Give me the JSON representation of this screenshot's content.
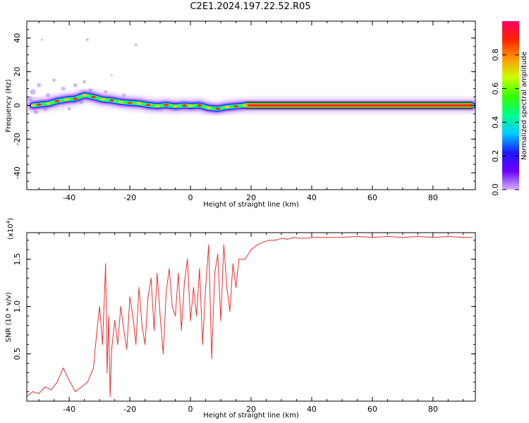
{
  "title": "C2E1.2024.197.22.52.R05",
  "colors": {
    "signal": "#e8302f",
    "frame": "#000000"
  },
  "chart_data": [
    {
      "type": "heatmap",
      "xlabel": "Height of straight line (km)",
      "ylabel": "Frequency (Hz)",
      "xlim": [
        -54,
        94
      ],
      "ylim": [
        -50,
        50
      ],
      "xticks": [
        "-40",
        "-20",
        "0",
        "20",
        "40",
        "60",
        "80"
      ],
      "xtick_values": [
        -40,
        -20,
        0,
        20,
        40,
        60,
        80
      ],
      "yticks": [
        "-40",
        "-20",
        "0",
        "20",
        "40"
      ],
      "ytick_values": [
        -40,
        -20,
        0,
        20,
        40
      ],
      "ridge": {
        "x": [
          -52,
          -50,
          -47,
          -44,
          -41,
          -38,
          -35,
          -32,
          -29,
          -26,
          -23,
          -20,
          -17,
          -14,
          -11,
          -8,
          -5,
          -2,
          0,
          3,
          6,
          9,
          12,
          15,
          18,
          93
        ],
        "freq": [
          0,
          0.5,
          1,
          2.5,
          3.5,
          4,
          6,
          5,
          3.5,
          3,
          2,
          1.5,
          1.2,
          0.2,
          -0.3,
          0.2,
          -0.5,
          0,
          -0.3,
          0,
          -1.5,
          -2,
          -1,
          -0.5,
          0,
          0
        ]
      },
      "colorbar": {
        "label": "Normalized spectral amplitude",
        "ticks": [
          "0.0",
          "0.2",
          "0.4",
          "0.6",
          "0.8"
        ],
        "tick_values": [
          0.0,
          0.2,
          0.4,
          0.6,
          0.8
        ],
        "range": [
          0,
          1
        ],
        "stops": [
          "#d6b3ff",
          "#6a00ff",
          "#1a1aff",
          "#00ccff",
          "#00ff88",
          "#33ff00",
          "#ccff00",
          "#ff9900",
          "#ff2200",
          "#ff0066"
        ]
      }
    },
    {
      "type": "line",
      "xlabel": "Height of straight line (km)",
      "ylabel": "SNR (10 * v/v)",
      "multiplier": "(x10",
      "multiplier_exp": "4",
      "xlim": [
        -54,
        94
      ],
      "ylim": [
        0,
        1.78
      ],
      "xticks": [
        "-40",
        "-20",
        "0",
        "20",
        "40",
        "60",
        "80"
      ],
      "xtick_values": [
        -40,
        -20,
        0,
        20,
        40,
        60,
        80
      ],
      "yticks": [
        "0.5",
        "1.0",
        "1.5"
      ],
      "ytick_values": [
        0.5,
        1.0,
        1.5
      ],
      "series": [
        {
          "x": [
            -54,
            -52,
            -50,
            -48,
            -46,
            -44,
            -42,
            -40,
            -38,
            -36,
            -34,
            -32,
            -31,
            -30,
            -29,
            -28,
            -27.5,
            -27,
            -26.5,
            -26,
            -25,
            -24,
            -23,
            -22,
            -21,
            -20,
            -19,
            -18,
            -17,
            -16,
            -15,
            -14,
            -13,
            -12,
            -11,
            -10,
            -9,
            -8,
            -7,
            -6,
            -5,
            -4,
            -3,
            -2,
            -1,
            0,
            1,
            2,
            3,
            4,
            5,
            6,
            7,
            8,
            9,
            10,
            11,
            12,
            13,
            14,
            15,
            16,
            18,
            20,
            22,
            24,
            26,
            28,
            30,
            32,
            34,
            36,
            38,
            40,
            45,
            50,
            55,
            60,
            65,
            70,
            75,
            80,
            85,
            90,
            93
          ],
          "y": [
            0.05,
            0.1,
            0.08,
            0.15,
            0.12,
            0.2,
            0.35,
            0.22,
            0.1,
            0.15,
            0.2,
            0.35,
            0.7,
            1.0,
            0.6,
            1.45,
            0.3,
            0.9,
            0.05,
            0.55,
            0.85,
            0.6,
            1.0,
            0.75,
            0.55,
            1.1,
            0.9,
            0.6,
            1.2,
            0.8,
            0.6,
            1.1,
            1.3,
            0.75,
            1.35,
            0.9,
            0.5,
            1.15,
            1.4,
            1.0,
            0.9,
            1.35,
            0.75,
            1.25,
            1.5,
            0.85,
            1.2,
            0.9,
            1.4,
            0.6,
            1.2,
            1.65,
            0.45,
            1.35,
            1.55,
            0.85,
            1.65,
            1.2,
            0.95,
            1.45,
            1.2,
            1.5,
            1.5,
            1.6,
            1.65,
            1.68,
            1.7,
            1.7,
            1.72,
            1.71,
            1.73,
            1.72,
            1.72,
            1.73,
            1.73,
            1.73,
            1.74,
            1.73,
            1.74,
            1.73,
            1.74,
            1.73,
            1.74,
            1.73,
            1.73
          ]
        }
      ]
    }
  ]
}
